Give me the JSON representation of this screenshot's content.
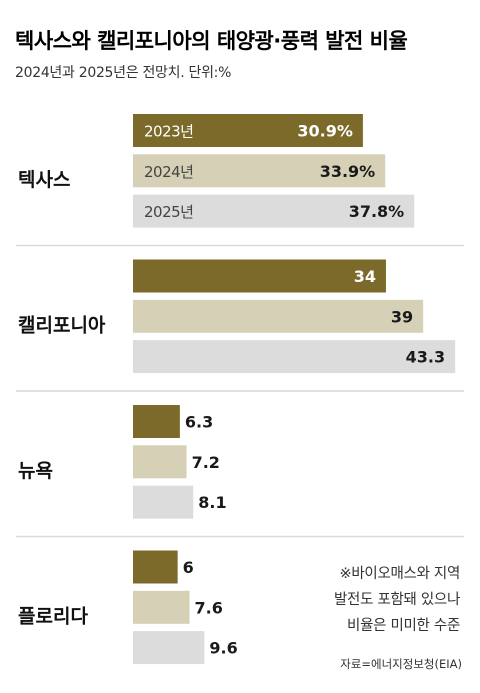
{
  "colors": {
    "y2023": "#7b6a2a",
    "y2024": "#d6d0b6",
    "y2025": "#dcdcdc",
    "divider": "#d9d9d9"
  },
  "chart_data": {
    "type": "bar",
    "orientation": "horizontal",
    "title": "텍사스와 캘리포니아의 태양광·풍력 발전 비율",
    "subtitle": "2024년과 2025년은 전망치. 단위:%",
    "groups": [
      {
        "name": "텍사스",
        "bars": [
          {
            "year": "2023년",
            "value": 30.9,
            "label": "30.9%"
          },
          {
            "year": "2024년",
            "value": 33.9,
            "label": "33.9%"
          },
          {
            "year": "2025년",
            "value": 37.8,
            "label": "37.8%"
          }
        ]
      },
      {
        "name": "캘리포니아",
        "bars": [
          {
            "year": "2023년",
            "value": 34,
            "label": "34"
          },
          {
            "year": "2024년",
            "value": 39,
            "label": "39"
          },
          {
            "year": "2025년",
            "value": 43.3,
            "label": "43.3"
          }
        ]
      },
      {
        "name": "뉴욕",
        "bars": [
          {
            "year": "2023년",
            "value": 6.3,
            "label": "6.3"
          },
          {
            "year": "2024년",
            "value": 7.2,
            "label": "7.2"
          },
          {
            "year": "2025년",
            "value": 8.1,
            "label": "8.1"
          }
        ]
      },
      {
        "name": "플로리다",
        "bars": [
          {
            "year": "2023년",
            "value": 6,
            "label": "6"
          },
          {
            "year": "2024년",
            "value": 7.6,
            "label": "7.6"
          },
          {
            "year": "2025년",
            "value": 9.6,
            "label": "9.6"
          }
        ]
      }
    ],
    "note": [
      "※바이오매스와 지역",
      "발전도 포함돼 있으나",
      "비율은 미미한 수준"
    ],
    "source": "자료=에너지정보청(EIA)"
  }
}
